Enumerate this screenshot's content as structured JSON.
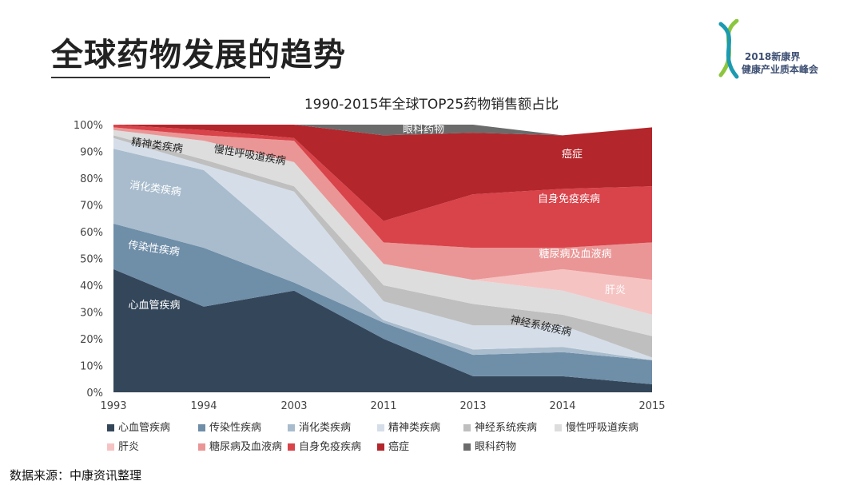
{
  "slide": {
    "title": "全球药物发展的趋势",
    "source": "数据来源：中康资讯整理"
  },
  "logo": {
    "line1": "2018新康界",
    "line2": "健康产业质本峰会"
  },
  "colors": {
    "心血管疾病": "#34475a",
    "传染性疾病": "#6f8ea8",
    "消化类疾病": "#a8bccd",
    "精神类疾病": "#d5dee8",
    "神经系统疾病": "#bfbfbf",
    "慢性呼吸道疾病": "#dddddd",
    "肝炎": "#f6c3c3",
    "糖尿病及血液病": "#ea9696",
    "自身免疫疾病": "#d9434a",
    "癌症": "#b3262b",
    "眼科药物": "#6b6b6b"
  },
  "chart_data": {
    "type": "area",
    "stacked": true,
    "title": "1990-2015年全球TOP25药物销售额占比",
    "x": [
      "1993",
      "1994",
      "2003",
      "2011",
      "2013",
      "2014",
      "2015"
    ],
    "ylim": [
      0,
      100
    ],
    "yticks": [
      "0%",
      "10%",
      "20%",
      "30%",
      "40%",
      "50%",
      "60%",
      "70%",
      "80%",
      "90%",
      "100%"
    ],
    "series": [
      {
        "name": "心血管疾病",
        "values": [
          46,
          32,
          38,
          20,
          6,
          6,
          3
        ]
      },
      {
        "name": "传染性疾病",
        "values": [
          17,
          22,
          3,
          6,
          8,
          9,
          9
        ]
      },
      {
        "name": "消化类疾病",
        "values": [
          28,
          29,
          13,
          1,
          2,
          2,
          0
        ]
      },
      {
        "name": "精神类疾病",
        "values": [
          4,
          2,
          21,
          7,
          9,
          8,
          1
        ]
      },
      {
        "name": "神经系统疾病",
        "values": [
          1,
          2,
          2,
          6,
          8,
          4,
          8
        ]
      },
      {
        "name": "慢性呼吸道疾病",
        "values": [
          2,
          7,
          9,
          8,
          9,
          9,
          8
        ]
      },
      {
        "name": "肝炎",
        "values": [
          0,
          0,
          0,
          0,
          0,
          8,
          13
        ]
      },
      {
        "name": "糖尿病及血液病",
        "values": [
          1,
          2,
          8,
          8,
          12,
          8,
          14
        ]
      },
      {
        "name": "自身免疫疾病",
        "values": [
          1,
          2,
          1,
          8,
          20,
          22,
          21
        ]
      },
      {
        "name": "癌症",
        "values": [
          0,
          2,
          5,
          32,
          23,
          20,
          22
        ]
      },
      {
        "name": "眼科药物",
        "values": [
          0,
          2,
          0,
          4,
          3,
          0,
          0
        ]
      }
    ],
    "area_labels": [
      {
        "text": "精神类疾病",
        "color": "dark"
      },
      {
        "text": "慢性呼吸道疾病",
        "color": "dark"
      },
      {
        "text": "消化类疾病",
        "color": "light"
      },
      {
        "text": "传染性疾病",
        "color": "light"
      },
      {
        "text": "心血管疾病",
        "color": "light"
      },
      {
        "text": "眼科药物",
        "color": "light"
      },
      {
        "text": "癌症",
        "color": "light"
      },
      {
        "text": "自身免疫疾病",
        "color": "light"
      },
      {
        "text": "糖尿病及血液病",
        "color": "light"
      },
      {
        "text": "肝炎",
        "color": "light"
      },
      {
        "text": "神经系统疾病",
        "color": "dark"
      }
    ]
  }
}
